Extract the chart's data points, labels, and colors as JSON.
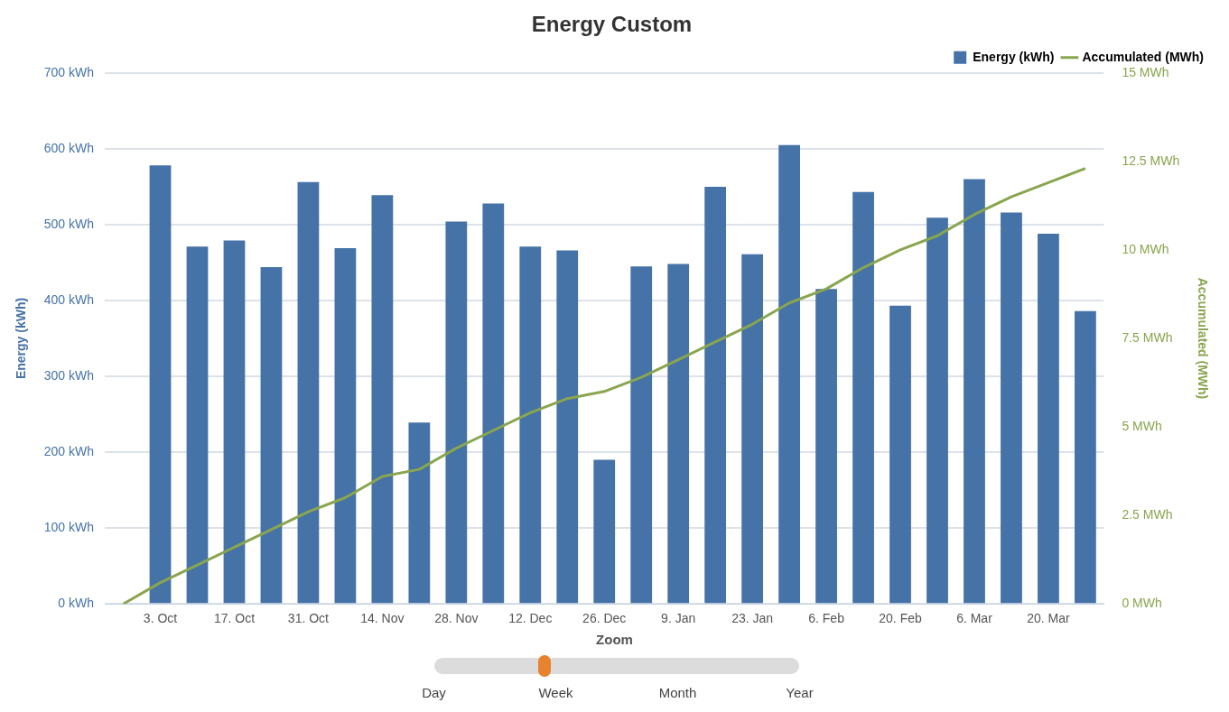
{
  "chart_data": {
    "type": "bar",
    "title": "Energy Custom",
    "ylabel": "Energy (kWh)",
    "y2label": "Accumulated (MWh)",
    "categories": [
      null,
      "3. Oct",
      null,
      "17. Oct",
      null,
      "31. Oct",
      null,
      "14. Nov",
      null,
      "28. Nov",
      null,
      "12. Dec",
      null,
      "26. Dec",
      null,
      "9. Jan",
      null,
      "23. Jan",
      null,
      "6. Feb",
      null,
      "20. Feb",
      null,
      "6. Mar",
      null,
      "20. Mar",
      null
    ],
    "series": [
      {
        "name": "Energy (kWh)",
        "color": "#4572a7",
        "values": [
          null,
          578,
          471,
          479,
          444,
          556,
          469,
          539,
          239,
          504,
          528,
          471,
          466,
          190,
          445,
          448,
          550,
          461,
          605,
          415,
          543,
          393,
          509,
          560,
          516,
          488,
          386
        ]
      },
      {
        "name": "Accumulated (MWh)",
        "type": "line",
        "axis": "y2",
        "color": "#89a54e",
        "values": [
          0,
          0.6,
          1.1,
          1.6,
          2.1,
          2.6,
          3.0,
          3.6,
          3.8,
          4.4,
          4.9,
          5.4,
          5.8,
          6.0,
          6.4,
          6.9,
          7.4,
          7.9,
          8.5,
          8.9,
          9.5,
          10.0,
          10.4,
          11.0,
          11.5,
          11.9,
          12.3
        ]
      }
    ],
    "ylim": [
      0,
      700
    ],
    "yticks": [
      {
        "value": 0,
        "label": "0 kWh"
      },
      {
        "value": 100,
        "label": "100 kWh"
      },
      {
        "value": 200,
        "label": "200 kWh"
      },
      {
        "value": 300,
        "label": "300 kWh"
      },
      {
        "value": 400,
        "label": "400 kWh"
      },
      {
        "value": 500,
        "label": "500 kWh"
      },
      {
        "value": 600,
        "label": "600 kWh"
      },
      {
        "value": 700,
        "label": "700 kWh"
      }
    ],
    "y2lim": [
      0,
      15
    ],
    "y2ticks": [
      {
        "value": 0,
        "label": "0 MWh"
      },
      {
        "value": 2.5,
        "label": "2.5 MWh"
      },
      {
        "value": 5,
        "label": "5 MWh"
      },
      {
        "value": 7.5,
        "label": "7.5 MWh"
      },
      {
        "value": 10,
        "label": "10 MWh"
      },
      {
        "value": 12.5,
        "label": "12.5 MWh"
      },
      {
        "value": 15,
        "label": "15 MWh"
      }
    ],
    "grid": "y",
    "legend": "top right",
    "marker": "none",
    "line_style": "solid",
    "annotations": [
      "Zoom",
      "Day",
      "Week",
      "Month",
      "Year"
    ]
  }
}
